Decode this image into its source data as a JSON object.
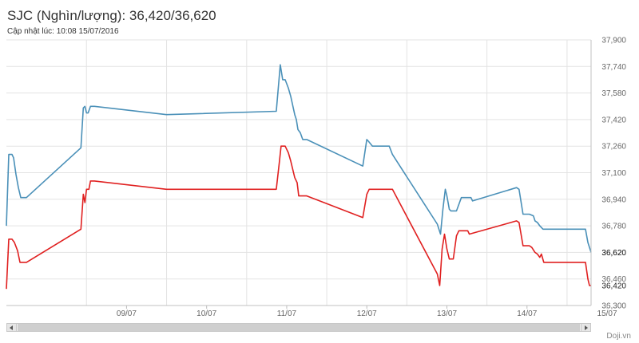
{
  "chart_data": {
    "type": "line",
    "title": "SJC (Nghìn/lượng): 36,420/36,620",
    "subtitle": "Cập nhật lúc: 10:08 15/07/2016",
    "xlabel": "",
    "ylabel": "",
    "x_tick_labels": [
      "09/07",
      "10/07",
      "11/07",
      "12/07",
      "13/07",
      "14/07",
      "15/07"
    ],
    "x_range": [
      8.0,
      15.3
    ],
    "ylim": [
      36300,
      37900
    ],
    "y_ticks": [
      36300,
      36460,
      36620,
      36780,
      36940,
      37100,
      37260,
      37420,
      37580,
      37740,
      37900
    ],
    "y_tick_labels": [
      "36,300",
      "36,460",
      "36,620",
      "36,780",
      "36,940",
      "37,100",
      "37,260",
      "37,420",
      "37,580",
      "37,740",
      "37,900"
    ],
    "grid": true,
    "series": [
      {
        "color": "#4a90b8",
        "end_label": "36,620",
        "points": [
          [
            8.0,
            36780
          ],
          [
            8.03,
            37210
          ],
          [
            8.07,
            37210
          ],
          [
            8.09,
            37190
          ],
          [
            8.12,
            37090
          ],
          [
            8.15,
            37010
          ],
          [
            8.18,
            36950
          ],
          [
            8.25,
            36950
          ],
          [
            8.93,
            37250
          ],
          [
            8.96,
            37490
          ],
          [
            8.98,
            37500
          ],
          [
            9.0,
            37460
          ],
          [
            9.02,
            37460
          ],
          [
            9.05,
            37500
          ],
          [
            9.1,
            37500
          ],
          [
            10.0,
            37450
          ],
          [
            11.37,
            37470
          ],
          [
            11.42,
            37750
          ],
          [
            11.45,
            37660
          ],
          [
            11.48,
            37660
          ],
          [
            11.52,
            37610
          ],
          [
            11.55,
            37560
          ],
          [
            11.6,
            37450
          ],
          [
            11.62,
            37420
          ],
          [
            11.64,
            37360
          ],
          [
            11.67,
            37340
          ],
          [
            11.7,
            37300
          ],
          [
            11.75,
            37300
          ],
          [
            12.45,
            37140
          ],
          [
            12.5,
            37300
          ],
          [
            12.52,
            37290
          ],
          [
            12.57,
            37260
          ],
          [
            12.78,
            37260
          ],
          [
            12.82,
            37210
          ],
          [
            13.38,
            36790
          ],
          [
            13.42,
            36730
          ],
          [
            13.45,
            36880
          ],
          [
            13.48,
            37000
          ],
          [
            13.5,
            36960
          ],
          [
            13.53,
            36880
          ],
          [
            13.55,
            36870
          ],
          [
            13.62,
            36870
          ],
          [
            13.68,
            36950
          ],
          [
            13.8,
            36950
          ],
          [
            13.82,
            36930
          ],
          [
            14.37,
            37010
          ],
          [
            14.4,
            37000
          ],
          [
            14.45,
            36850
          ],
          [
            14.53,
            36850
          ],
          [
            14.58,
            36840
          ],
          [
            14.6,
            36810
          ],
          [
            14.63,
            36800
          ],
          [
            14.66,
            36780
          ],
          [
            14.7,
            36760
          ],
          [
            14.72,
            36760
          ],
          [
            15.2,
            36760
          ],
          [
            15.23,
            36760
          ],
          [
            15.26,
            36680
          ],
          [
            15.3,
            36620
          ]
        ]
      },
      {
        "color": "#e02020",
        "end_label": "36,420",
        "points": [
          [
            8.0,
            36400
          ],
          [
            8.03,
            36700
          ],
          [
            8.07,
            36700
          ],
          [
            8.1,
            36680
          ],
          [
            8.14,
            36630
          ],
          [
            8.17,
            36560
          ],
          [
            8.25,
            36560
          ],
          [
            8.93,
            36760
          ],
          [
            8.96,
            36970
          ],
          [
            8.98,
            36920
          ],
          [
            9.0,
            37000
          ],
          [
            9.03,
            37000
          ],
          [
            9.05,
            37050
          ],
          [
            9.1,
            37050
          ],
          [
            10.0,
            37000
          ],
          [
            11.37,
            37000
          ],
          [
            11.41,
            37170
          ],
          [
            11.43,
            37260
          ],
          [
            11.48,
            37260
          ],
          [
            11.52,
            37220
          ],
          [
            11.55,
            37170
          ],
          [
            11.6,
            37070
          ],
          [
            11.63,
            37040
          ],
          [
            11.65,
            36960
          ],
          [
            11.75,
            36960
          ],
          [
            12.45,
            36830
          ],
          [
            12.5,
            36970
          ],
          [
            12.53,
            37000
          ],
          [
            12.82,
            37000
          ],
          [
            13.38,
            36490
          ],
          [
            13.41,
            36420
          ],
          [
            13.44,
            36640
          ],
          [
            13.47,
            36730
          ],
          [
            13.5,
            36640
          ],
          [
            13.53,
            36580
          ],
          [
            13.58,
            36580
          ],
          [
            13.62,
            36720
          ],
          [
            13.65,
            36750
          ],
          [
            13.76,
            36750
          ],
          [
            13.78,
            36730
          ],
          [
            14.37,
            36810
          ],
          [
            14.4,
            36800
          ],
          [
            14.45,
            36660
          ],
          [
            14.53,
            36660
          ],
          [
            14.56,
            36650
          ],
          [
            14.6,
            36620
          ],
          [
            14.63,
            36610
          ],
          [
            14.66,
            36590
          ],
          [
            14.68,
            36610
          ],
          [
            14.71,
            36560
          ],
          [
            15.2,
            36560
          ],
          [
            15.23,
            36560
          ],
          [
            15.26,
            36460
          ],
          [
            15.28,
            36420
          ],
          [
            15.3,
            36420
          ]
        ]
      }
    ]
  },
  "credit": "Doji.vn"
}
